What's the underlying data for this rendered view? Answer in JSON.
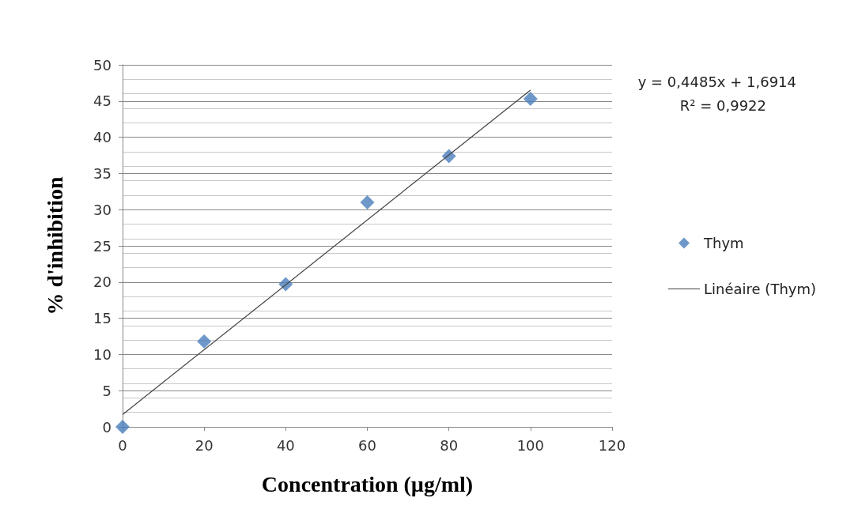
{
  "chart_data": {
    "type": "scatter",
    "xlabel": "Concentration (µg/ml)",
    "ylabel": "% d'inhibition",
    "series": [
      {
        "name": "Thym",
        "color": "#4a7ebb",
        "marker": "diamond",
        "x": [
          0,
          20,
          40,
          60,
          80,
          100
        ],
        "values": [
          0,
          11.8,
          19.7,
          31.0,
          37.4,
          45.3
        ]
      },
      {
        "name": "Linéaire (Thym)",
        "type": "line",
        "color": "#404040",
        "marker": "none",
        "line_style": "solid",
        "x": [
          0,
          100
        ],
        "values": [
          1.7,
          46.5
        ]
      }
    ],
    "xlim": [
      0,
      120
    ],
    "xticks": [
      0,
      20,
      40,
      60,
      80,
      100,
      120
    ],
    "ylim": [
      0,
      50
    ],
    "yticks": [
      0,
      5,
      10,
      15,
      20,
      25,
      30,
      35,
      40,
      45,
      50
    ],
    "grid": "y",
    "legend": "right",
    "annotations": [
      "y = 0,4485x + 1,6914",
      "R² = 0,9922"
    ]
  }
}
